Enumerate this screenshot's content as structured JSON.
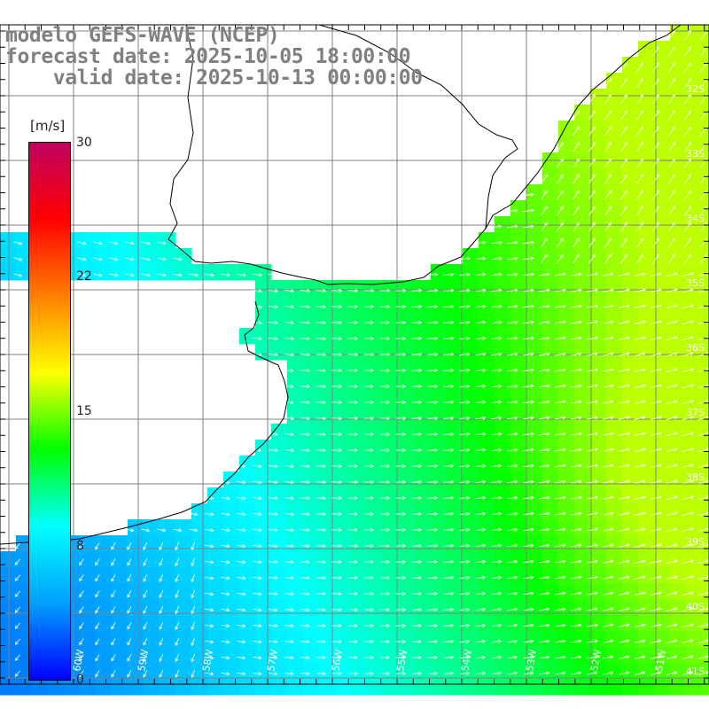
{
  "title": {
    "line1": "modelo GEFS-WAVE (NCEP)",
    "line2": "forecast date: 2025-10-05 18:00:00",
    "line3": "    valid date: 2025-10-13 00:00:00"
  },
  "colorbar": {
    "unit": "[m/s]",
    "ticks": [
      "30",
      "22",
      "15",
      "8",
      "0"
    ],
    "stops": [
      "#0000ff",
      "#00a0ff",
      "#00ffff",
      "#00ff00",
      "#ffff00",
      "#ff8000",
      "#ff0000",
      "#c00060"
    ]
  },
  "map": {
    "lat_labels": [
      "32S",
      "33S",
      "34S",
      "35S",
      "36S",
      "37S",
      "38S",
      "39S",
      "40S",
      "41S"
    ],
    "lon_labels": [
      "60W",
      "59W",
      "58W",
      "57W",
      "56W",
      "55W",
      "54W",
      "53W",
      "52W",
      "51W"
    ],
    "coast_color": "#000000",
    "grid_color": "#808080",
    "arrow_color": "#ffffff"
  }
}
